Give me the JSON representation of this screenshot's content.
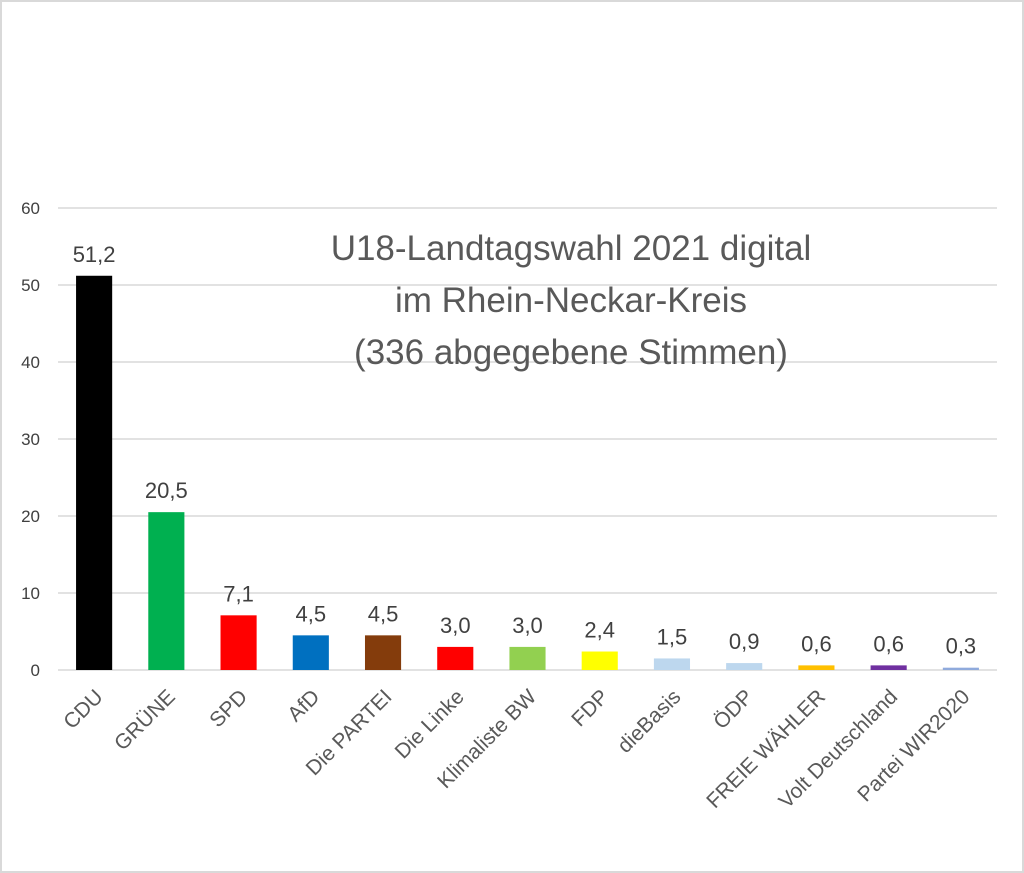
{
  "chart_data": {
    "type": "bar",
    "title": [
      "U18-Landtagswahl 2021 digital",
      "im Rhein-Neckar-Kreis",
      "(336 abgegebene Stimmen)"
    ],
    "xlabel": "",
    "ylabel": "",
    "ylim": [
      0,
      60
    ],
    "yticks": [
      0,
      10,
      20,
      30,
      40,
      50,
      60
    ],
    "grid": true,
    "legend": "none",
    "categories": [
      "CDU",
      "GRÜNE",
      "SPD",
      "AfD",
      "Die PARTEI",
      "Die Linke",
      "Klimaliste BW",
      "FDP",
      "dieBasis",
      "ÖDP",
      "FREIE WÄHLER",
      "Volt Deutschland",
      "Partei WIR2020"
    ],
    "values": [
      51.2,
      20.5,
      7.1,
      4.5,
      4.5,
      3.0,
      3.0,
      2.4,
      1.5,
      0.9,
      0.6,
      0.6,
      0.3
    ],
    "data_labels": [
      "51,2",
      "20,5",
      "7,1",
      "4,5",
      "4,5",
      "3,0",
      "3,0",
      "2,4",
      "1,5",
      "0,9",
      "0,6",
      "0,6",
      "0,3"
    ],
    "colors": [
      "#000000",
      "#00b050",
      "#ff0000",
      "#0070c0",
      "#843c0c",
      "#ff0000",
      "#92d050",
      "#ffff00",
      "#bdd7ee",
      "#bdd7ee",
      "#ffc000",
      "#7030a0",
      "#8faadc"
    ]
  }
}
